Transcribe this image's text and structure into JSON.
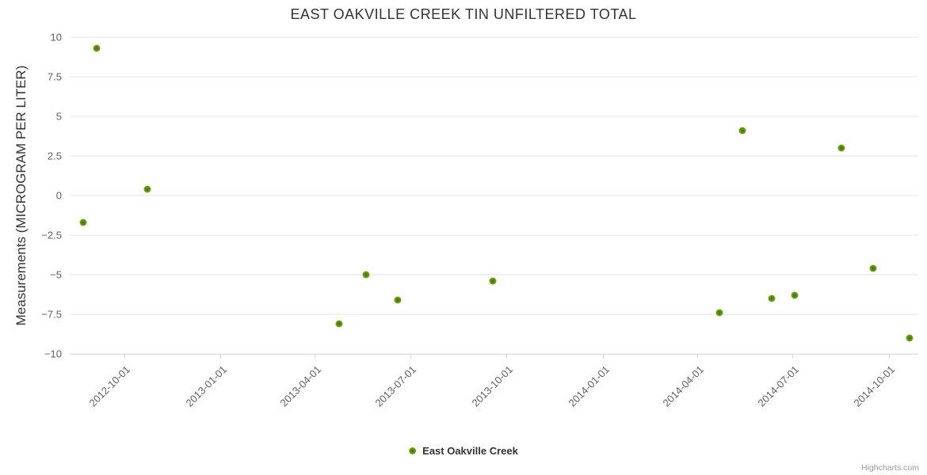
{
  "header": {
    "title": "EAST OAKVILLE CREEK TIN UNFILTERED TOTAL"
  },
  "legend": {
    "label": "East Oakville Creek"
  },
  "credits": {
    "label": "Highcharts.com"
  },
  "colors": {
    "series_green": "#6fa312",
    "grid": "#e6e6e6",
    "axis_line": "#ccd6eb",
    "title_text": "#333333",
    "tick_text": "#606060",
    "credits_text": "#9b9b9b"
  },
  "chart_data": {
    "type": "scatter",
    "title": "EAST OAKVILLE CREEK TIN UNFILTERED TOTAL",
    "xlabel": "",
    "ylabel": "Measurements (MICROGRAM PER LITER)",
    "ylim": [
      -10,
      10
    ],
    "y_ticks": [
      10,
      7.5,
      5,
      2.5,
      0,
      -2.5,
      -5,
      -7.5,
      -10
    ],
    "x_ticks": [
      "2012-10-01",
      "2013-01-01",
      "2013-04-01",
      "2013-07-01",
      "2013-10-01",
      "2014-01-01",
      "2014-04-01",
      "2014-07-01",
      "2014-10-01"
    ],
    "x_domain": [
      "2012-08-10",
      "2014-10-29"
    ],
    "grid": true,
    "legend_position": "bottom-center",
    "series": [
      {
        "name": "East Oakville Creek",
        "color": "#6fa312",
        "marker": "circle",
        "points": [
          {
            "date": "2012-08-23",
            "value": -1.7
          },
          {
            "date": "2012-09-05",
            "value": 9.3
          },
          {
            "date": "2012-10-23",
            "value": 0.4
          },
          {
            "date": "2013-04-24",
            "value": -8.1
          },
          {
            "date": "2013-05-20",
            "value": -5.0
          },
          {
            "date": "2013-06-19",
            "value": -6.6
          },
          {
            "date": "2013-09-18",
            "value": -5.4
          },
          {
            "date": "2014-04-22",
            "value": -7.4
          },
          {
            "date": "2014-05-14",
            "value": 4.1
          },
          {
            "date": "2014-06-11",
            "value": -6.5
          },
          {
            "date": "2014-07-03",
            "value": -6.3
          },
          {
            "date": "2014-08-17",
            "value": 3.0
          },
          {
            "date": "2014-09-16",
            "value": -4.6
          },
          {
            "date": "2014-10-21",
            "value": -9.0
          }
        ]
      }
    ]
  }
}
